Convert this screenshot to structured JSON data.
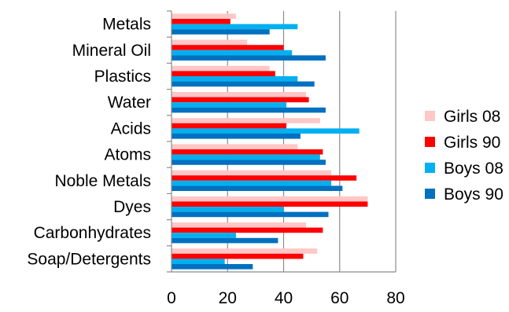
{
  "chart_data": {
    "type": "bar",
    "orientation": "horizontal",
    "categories": [
      "Metals",
      "Mineral Oil",
      "Plastics",
      "Water",
      "Acids",
      "Atoms",
      "Noble Metals",
      "Dyes",
      "Carbonhydrates",
      "Soap/Detergents"
    ],
    "series": [
      {
        "name": "Girls 08",
        "color": "#ffc7c7",
        "values": [
          23,
          27,
          35,
          48,
          53,
          45,
          57,
          70,
          48,
          52
        ]
      },
      {
        "name": "Girls 90",
        "color": "#ff0000",
        "values": [
          21,
          40,
          37,
          49,
          41,
          54,
          66,
          70,
          54,
          47
        ]
      },
      {
        "name": "Boys 08",
        "color": "#00b0f0",
        "values": [
          45,
          43,
          45,
          41,
          67,
          53,
          57,
          40,
          23,
          19
        ]
      },
      {
        "name": "Boys 90",
        "color": "#0070c0",
        "values": [
          35,
          55,
          51,
          55,
          46,
          55,
          61,
          56,
          38,
          29
        ]
      }
    ],
    "xlim": [
      0,
      80
    ],
    "xticks": [
      "0",
      "20",
      "40",
      "60",
      "80"
    ],
    "grid": true,
    "legend_position": "right",
    "gridline_color": "#8c8c8c"
  }
}
